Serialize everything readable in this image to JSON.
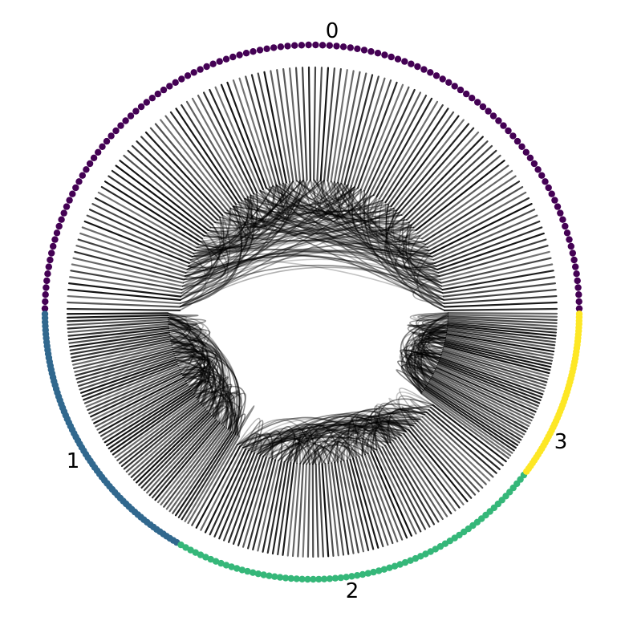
{
  "diagram": {
    "type": "circular-hierarchical-edge-bundling",
    "edge_color": "#000000",
    "groups": [
      {
        "label": "0",
        "color": "#440154",
        "node_count": 120
      },
      {
        "label": "1",
        "color": "#31688e",
        "node_count": 70
      },
      {
        "label": "2",
        "color": "#35b779",
        "node_count": 70
      },
      {
        "label": "3",
        "color": "#fde725",
        "node_count": 50
      }
    ]
  }
}
